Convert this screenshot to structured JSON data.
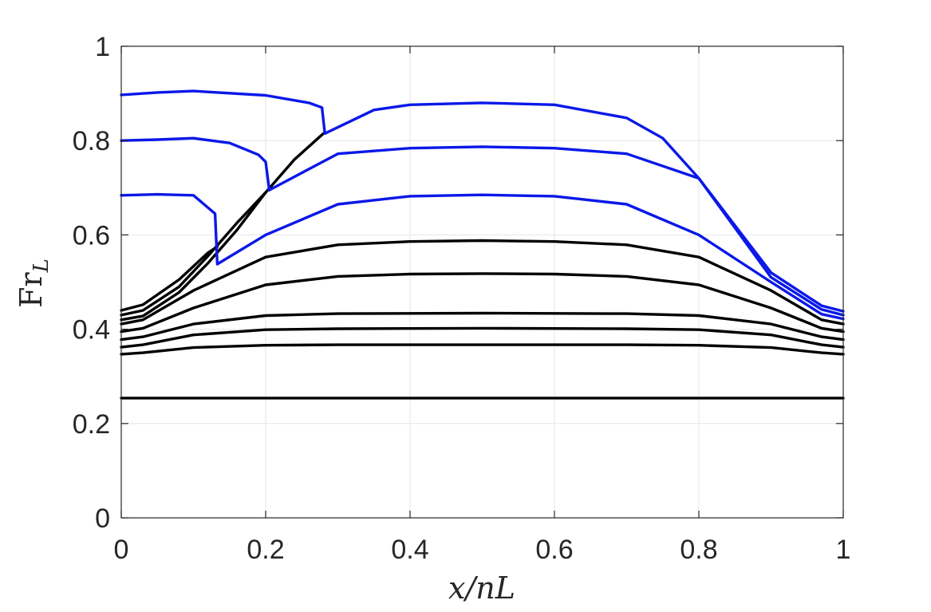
{
  "chart_data": {
    "type": "line",
    "title": "",
    "xlabel": "x/nL",
    "ylabel": "Fr_L",
    "xlim": [
      0,
      1
    ],
    "ylim": [
      0,
      1
    ],
    "xticks": [
      "0",
      "0.2",
      "0.4",
      "0.6",
      "0.8",
      "1"
    ],
    "yticks": [
      "0",
      "0.2",
      "0.4",
      "0.6",
      "0.8",
      "1"
    ],
    "grid": true,
    "colors": {
      "blue": "#0b18e8",
      "black": "#000000"
    },
    "series": [
      {
        "color": "#000000",
        "x": [
          0,
          0.5,
          1
        ],
        "y": [
          0.254,
          0.254,
          0.254
        ]
      },
      {
        "color": "#000000",
        "x": [
          0,
          0.03,
          0.1,
          0.2,
          0.3,
          0.5,
          0.7,
          0.8,
          0.9,
          0.97,
          1
        ],
        "y": [
          0.347,
          0.35,
          0.361,
          0.366,
          0.367,
          0.367,
          0.367,
          0.366,
          0.361,
          0.35,
          0.347
        ]
      },
      {
        "color": "#000000",
        "x": [
          0,
          0.03,
          0.1,
          0.2,
          0.3,
          0.5,
          0.7,
          0.8,
          0.9,
          0.97,
          1
        ],
        "y": [
          0.362,
          0.367,
          0.388,
          0.399,
          0.401,
          0.402,
          0.401,
          0.399,
          0.388,
          0.367,
          0.362
        ]
      },
      {
        "color": "#000000",
        "x": [
          0,
          0.03,
          0.1,
          0.2,
          0.3,
          0.5,
          0.7,
          0.8,
          0.9,
          0.97,
          1
        ],
        "y": [
          0.378,
          0.384,
          0.411,
          0.429,
          0.433,
          0.434,
          0.433,
          0.429,
          0.411,
          0.384,
          0.378
        ]
      },
      {
        "color": "#000000",
        "x": [
          0,
          0.03,
          0.1,
          0.2,
          0.3,
          0.4,
          0.5,
          0.6,
          0.7,
          0.8,
          0.9,
          0.97,
          1
        ],
        "y": [
          0.395,
          0.402,
          0.445,
          0.494,
          0.512,
          0.517,
          0.518,
          0.517,
          0.512,
          0.494,
          0.445,
          0.402,
          0.395
        ]
      },
      {
        "color": "#000000",
        "x": [
          0,
          0.03,
          0.1,
          0.2,
          0.3,
          0.4,
          0.5,
          0.6,
          0.7,
          0.8,
          0.9,
          0.97,
          1
        ],
        "y": [
          0.411,
          0.42,
          0.482,
          0.553,
          0.579,
          0.586,
          0.588,
          0.586,
          0.579,
          0.553,
          0.482,
          0.42,
          0.411
        ]
      },
      {
        "color": "#000000",
        "x": [
          0,
          0.03,
          0.08,
          0.12,
          0.16,
          0.2,
          0.24,
          0.28
        ],
        "y": [
          0.42,
          0.428,
          0.478,
          0.54,
          0.61,
          0.69,
          0.76,
          0.815
        ]
      },
      {
        "color": "#000000",
        "x": [
          0,
          0.03,
          0.08,
          0.12,
          0.16,
          0.2
        ],
        "y": [
          0.43,
          0.44,
          0.49,
          0.555,
          0.625,
          0.69
        ]
      },
      {
        "color": "#000000",
        "x": [
          0,
          0.03,
          0.08,
          0.12,
          0.133
        ],
        "y": [
          0.44,
          0.452,
          0.505,
          0.562,
          0.575
        ]
      },
      {
        "color": "#0b18e8",
        "x": [
          0,
          0.05,
          0.1,
          0.13,
          0.133,
          0.2,
          0.3,
          0.4,
          0.5,
          0.6,
          0.7,
          0.8,
          0.9,
          0.97,
          1
        ],
        "y": [
          0.684,
          0.686,
          0.684,
          0.645,
          0.538,
          0.6,
          0.665,
          0.682,
          0.685,
          0.682,
          0.665,
          0.6,
          0.5,
          0.432,
          0.422
        ]
      },
      {
        "color": "#0b18e8",
        "x": [
          0,
          0.05,
          0.1,
          0.15,
          0.19,
          0.2,
          0.205,
          0.3,
          0.4,
          0.5,
          0.6,
          0.7,
          0.8,
          0.9,
          0.97,
          1
        ],
        "y": [
          0.8,
          0.802,
          0.805,
          0.795,
          0.77,
          0.755,
          0.695,
          0.772,
          0.784,
          0.787,
          0.784,
          0.772,
          0.72,
          0.51,
          0.442,
          0.43
        ]
      },
      {
        "color": "#0b18e8",
        "x": [
          0,
          0.05,
          0.1,
          0.2,
          0.26,
          0.278,
          0.282,
          0.35,
          0.4,
          0.5,
          0.6,
          0.7,
          0.75,
          0.8,
          0.9,
          0.97,
          1
        ],
        "y": [
          0.897,
          0.902,
          0.905,
          0.896,
          0.88,
          0.87,
          0.815,
          0.865,
          0.876,
          0.88,
          0.876,
          0.848,
          0.805,
          0.72,
          0.52,
          0.45,
          0.438
        ]
      }
    ]
  }
}
